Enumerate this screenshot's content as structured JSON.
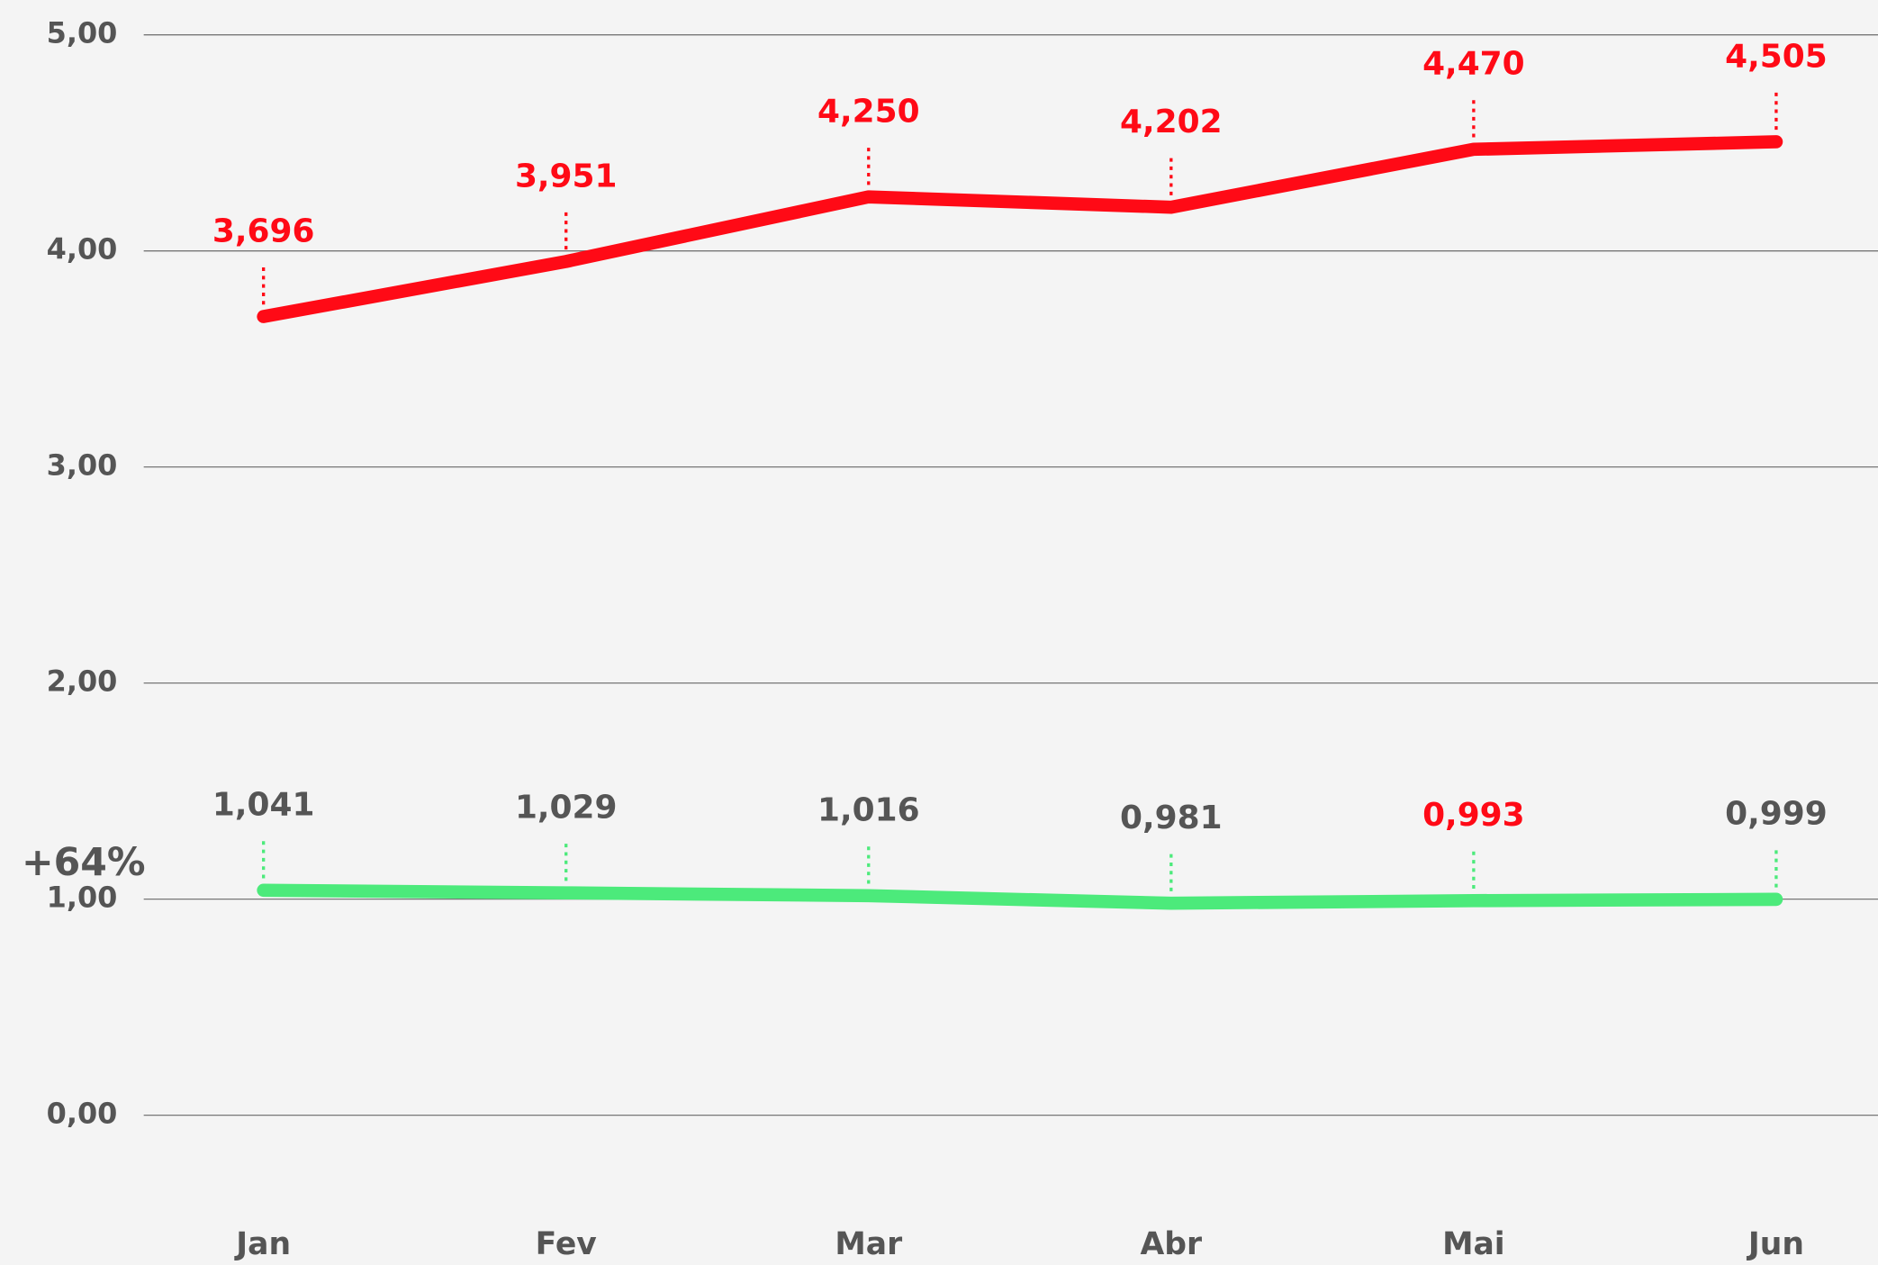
{
  "chart_data": {
    "type": "line",
    "annotation": "+64%",
    "categories": [
      "Jan",
      "Fev",
      "Mar",
      "Abr",
      "Mai",
      "Jun"
    ],
    "series": [
      {
        "color": "#ff0a16",
        "values": [
          3.696,
          3.951,
          4.25,
          4.202,
          4.47,
          4.505
        ],
        "value_labels": [
          "3,696",
          "3,951",
          "4,250",
          "4,202",
          "4,470",
          "4,505"
        ],
        "label_colors": [
          "#ff0a16",
          "#ff0a16",
          "#ff0a16",
          "#ff0a16",
          "#ff0a16",
          "#ff0a16"
        ]
      },
      {
        "color": "#4cea7b",
        "values": [
          1.041,
          1.029,
          1.016,
          0.981,
          0.993,
          0.999
        ],
        "value_labels": [
          "1,041",
          "1,029",
          "1,016",
          "0,981",
          "0,993",
          "0,999"
        ],
        "label_colors": [
          "#555555",
          "#555555",
          "#555555",
          "#555555",
          "#ff0a16",
          "#555555"
        ]
      }
    ],
    "ylim": [
      0,
      5
    ],
    "yticks": [
      {
        "value": 0,
        "label": "0,00"
      },
      {
        "value": 1,
        "label": "1,00"
      },
      {
        "value": 2,
        "label": "2,00"
      },
      {
        "value": 3,
        "label": "3,00"
      },
      {
        "value": 4,
        "label": "4,00"
      },
      {
        "value": 5,
        "label": "5,00"
      }
    ],
    "grid": true
  }
}
